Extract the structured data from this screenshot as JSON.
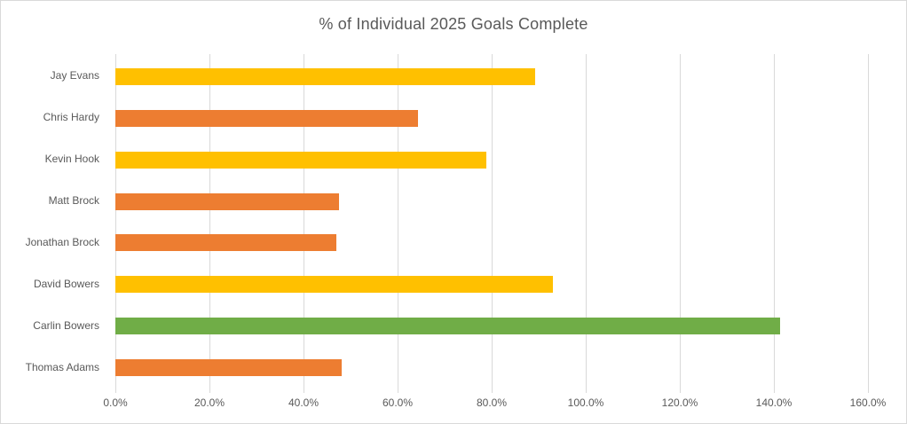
{
  "chart_data": {
    "type": "bar",
    "orientation": "horizontal",
    "title": "% of Individual 2025 Goals Complete",
    "categories": [
      "Jay Evans",
      "Chris Hardy",
      "Kevin Hook",
      "Matt Brock",
      "Jonathan Brock",
      "David Bowers",
      "Carlin Bowers",
      "Thomas Adams"
    ],
    "values": [
      89.3,
      64.4,
      78.8,
      47.6,
      47.0,
      93.1,
      141.3,
      48.2
    ],
    "bar_colors": [
      "#FFC000",
      "#ED7D31",
      "#FFC000",
      "#ED7D31",
      "#ED7D31",
      "#FFC000",
      "#70AD47",
      "#ED7D31"
    ],
    "x_ticks": [
      "0.0%",
      "20.0%",
      "40.0%",
      "60.0%",
      "80.0%",
      "100.0%",
      "120.0%",
      "140.0%",
      "160.0%"
    ],
    "xlim": [
      0,
      160
    ],
    "xlabel": "",
    "ylabel": "",
    "grid": "vertical",
    "legend": "none",
    "colors": {
      "gold": "#FFC000",
      "orange": "#ED7D31",
      "green": "#70AD47",
      "grid": "#D9D9D9",
      "border": "#D9D9D9",
      "text": "#595959",
      "background": "#FFFFFF"
    }
  }
}
